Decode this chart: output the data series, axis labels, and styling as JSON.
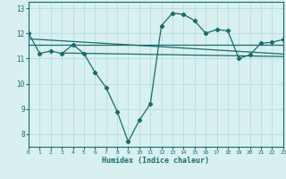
{
  "main_line_x": [
    0,
    1,
    2,
    3,
    4,
    5,
    6,
    7,
    8,
    9,
    10,
    11,
    12,
    13,
    14,
    15,
    16,
    17,
    18,
    19,
    20,
    21,
    22,
    23
  ],
  "main_line_y": [
    12.0,
    11.2,
    11.3,
    11.2,
    11.55,
    11.2,
    10.45,
    9.85,
    8.9,
    7.7,
    8.55,
    9.2,
    12.3,
    12.8,
    12.75,
    12.5,
    12.0,
    12.15,
    12.1,
    11.0,
    11.15,
    11.6,
    11.65,
    11.75
  ],
  "trend_line1_start_x": 0,
  "trend_line1_start_y": 11.78,
  "trend_line1_end_x": 23,
  "trend_line1_end_y": 11.18,
  "trend_line2_start_x": 0,
  "trend_line2_start_y": 11.55,
  "trend_line2_end_x": 23,
  "trend_line2_end_y": 11.55,
  "trend_line3_start_x": 3,
  "trend_line3_start_y": 11.22,
  "trend_line3_end_x": 23,
  "trend_line3_end_y": 11.08,
  "color": "#1a6b6b",
  "bg_color": "#d8f0f0",
  "grid_color": "#b8dcdc",
  "xlabel": "Humidex (Indice chaleur)",
  "ylim": [
    7.5,
    13.25
  ],
  "xlim": [
    0,
    23
  ],
  "yticks": [
    8,
    9,
    10,
    11,
    12,
    13
  ],
  "xticks": [
    0,
    1,
    2,
    3,
    4,
    5,
    6,
    7,
    8,
    9,
    10,
    11,
    12,
    13,
    14,
    15,
    16,
    17,
    18,
    19,
    20,
    21,
    22,
    23
  ]
}
